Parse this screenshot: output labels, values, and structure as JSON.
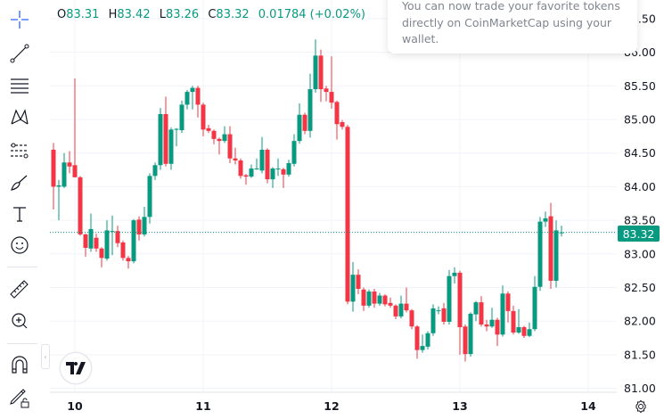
{
  "legend": {
    "open_label": "O",
    "open": "83.31",
    "high_label": "H",
    "high": "83.42",
    "low_label": "L",
    "low": "83.26",
    "close_label": "C",
    "close": "83.32",
    "change": "0.01784 (+0.02%)"
  },
  "popup": {
    "text_line1": "You can now trade your favorite tokens",
    "text_line2": "directly on CoinMarketCap using your",
    "text_line3": "wallet."
  },
  "toolbar": {
    "tools": [
      "crosshair-icon",
      "trend-line-icon",
      "fib-retracement-icon",
      "pattern-icon",
      "prediction-icon",
      "brush-icon",
      "text-icon",
      "emoji-icon",
      "ruler-icon",
      "zoom-in-icon",
      "magnet-icon",
      "lock-drawings-icon"
    ]
  },
  "current_price": "83.32",
  "colors": {
    "up": "#089981",
    "down": "#f23645",
    "grid": "#f0f3fa",
    "crosshair": "#2962ff"
  },
  "chart_data": {
    "type": "candlestick",
    "y_ticks": [
      "81.00",
      "81.50",
      "82.00",
      "82.50",
      "83.00",
      "83.50",
      "84.00",
      "84.50",
      "85.00",
      "85.50",
      "86.00",
      "86.50"
    ],
    "ylim": [
      81.0,
      86.5
    ],
    "x_ticks": [
      "10",
      "11",
      "12",
      "13",
      "14"
    ],
    "grid": true,
    "last_price": 83.32,
    "candles_ohlc": [
      [
        84.55,
        84.65,
        83.66,
        84.0
      ],
      [
        84.0,
        84.1,
        83.5,
        84.02
      ],
      [
        84.0,
        84.5,
        83.98,
        84.36
      ],
      [
        84.36,
        84.53,
        84.2,
        84.3
      ],
      [
        84.32,
        85.61,
        84.14,
        84.14
      ],
      [
        84.14,
        84.16,
        83.27,
        83.29
      ],
      [
        83.29,
        83.3,
        82.96,
        83.09
      ],
      [
        83.08,
        83.6,
        83.03,
        83.37
      ],
      [
        83.24,
        83.3,
        83.03,
        83.08
      ],
      [
        83.08,
        83.1,
        82.8,
        82.94
      ],
      [
        82.93,
        83.5,
        82.9,
        83.35
      ],
      [
        83.33,
        83.57,
        82.98,
        83.34
      ],
      [
        83.34,
        83.42,
        83.1,
        83.16
      ],
      [
        83.17,
        83.2,
        82.9,
        82.94
      ],
      [
        82.94,
        82.97,
        82.78,
        82.89
      ],
      [
        82.89,
        83.52,
        82.86,
        83.5
      ],
      [
        83.51,
        83.56,
        83.2,
        83.29
      ],
      [
        83.29,
        83.7,
        83.26,
        83.55
      ],
      [
        83.55,
        84.2,
        83.45,
        84.16
      ],
      [
        84.16,
        84.36,
        84.1,
        84.32
      ],
      [
        84.32,
        85.17,
        84.25,
        85.08
      ],
      [
        85.08,
        85.34,
        84.3,
        84.34
      ],
      [
        84.34,
        84.88,
        84.25,
        84.85
      ],
      [
        84.85,
        84.87,
        84.6,
        84.86
      ],
      [
        84.84,
        85.28,
        84.8,
        85.22
      ],
      [
        85.22,
        85.44,
        85.15,
        85.41
      ],
      [
        85.41,
        85.5,
        85.15,
        85.47
      ],
      [
        85.47,
        85.5,
        85.03,
        85.22
      ],
      [
        85.22,
        85.25,
        84.75,
        84.85
      ],
      [
        84.87,
        84.92,
        84.8,
        84.83
      ],
      [
        84.83,
        84.85,
        84.63,
        84.71
      ],
      [
        84.71,
        84.73,
        84.48,
        84.68
      ],
      [
        84.68,
        84.9,
        84.65,
        84.78
      ],
      [
        84.78,
        84.9,
        84.35,
        84.42
      ],
      [
        84.42,
        84.58,
        84.33,
        84.39
      ],
      [
        84.39,
        84.42,
        84.12,
        84.16
      ],
      [
        84.17,
        84.19,
        84.03,
        84.15
      ],
      [
        84.15,
        84.33,
        84.13,
        84.27
      ],
      [
        84.27,
        84.42,
        84.25,
        84.27
      ],
      [
        84.24,
        84.74,
        84.2,
        84.55
      ],
      [
        84.55,
        84.57,
        84.05,
        84.11
      ],
      [
        84.11,
        84.29,
        83.98,
        84.27
      ],
      [
        84.27,
        84.42,
        84.16,
        84.27
      ],
      [
        84.26,
        84.28,
        83.98,
        84.18
      ],
      [
        84.18,
        84.4,
        84.15,
        84.35
      ],
      [
        84.34,
        84.78,
        84.3,
        84.68
      ],
      [
        84.68,
        85.24,
        84.64,
        85.07
      ],
      [
        85.07,
        85.1,
        84.78,
        84.83
      ],
      [
        84.83,
        85.68,
        84.73,
        85.45
      ],
      [
        85.45,
        86.19,
        85.4,
        85.95
      ],
      [
        85.95,
        86.04,
        85.26,
        85.45
      ],
      [
        85.46,
        85.5,
        85.27,
        85.41
      ],
      [
        85.41,
        85.94,
        85.16,
        85.25
      ],
      [
        85.26,
        85.28,
        84.7,
        84.93
      ],
      [
        84.96,
        84.99,
        84.85,
        84.89
      ],
      [
        84.89,
        84.92,
        82.25,
        82.29
      ],
      [
        82.29,
        82.88,
        82.14,
        82.69
      ],
      [
        82.69,
        82.77,
        82.4,
        82.48
      ],
      [
        82.47,
        82.5,
        82.15,
        82.23
      ],
      [
        82.23,
        82.47,
        82.2,
        82.44
      ],
      [
        82.44,
        82.48,
        82.2,
        82.26
      ],
      [
        82.26,
        82.42,
        82.23,
        82.38
      ],
      [
        82.38,
        82.4,
        82.22,
        82.25
      ],
      [
        82.27,
        82.35,
        82.2,
        82.23
      ],
      [
        82.23,
        82.25,
        82.03,
        82.07
      ],
      [
        82.07,
        82.38,
        82.04,
        82.26
      ],
      [
        82.26,
        82.5,
        82.13,
        82.16
      ],
      [
        82.16,
        82.18,
        81.88,
        81.92
      ],
      [
        81.92,
        81.94,
        81.44,
        81.57
      ],
      [
        81.57,
        81.8,
        81.53,
        81.63
      ],
      [
        81.62,
        81.85,
        81.58,
        81.82
      ],
      [
        81.82,
        82.25,
        81.78,
        82.19
      ],
      [
        82.16,
        82.22,
        82.1,
        82.16
      ],
      [
        82.19,
        82.27,
        81.95,
        81.99
      ],
      [
        81.99,
        82.76,
        81.95,
        82.67
      ],
      [
        82.67,
        82.8,
        82.56,
        82.72
      ],
      [
        82.72,
        82.75,
        81.5,
        81.91
      ],
      [
        81.92,
        81.95,
        81.4,
        81.51
      ],
      [
        81.51,
        82.13,
        81.47,
        82.11
      ],
      [
        82.1,
        82.3,
        82.0,
        82.28
      ],
      [
        82.28,
        82.37,
        81.92,
        81.95
      ],
      [
        81.95,
        82.02,
        81.85,
        81.92
      ],
      [
        81.92,
        82.2,
        81.9,
        82.02
      ],
      [
        82.02,
        82.05,
        81.63,
        81.8
      ],
      [
        81.8,
        82.53,
        81.77,
        82.41
      ],
      [
        82.41,
        82.44,
        81.98,
        82.15
      ],
      [
        82.15,
        82.23,
        81.8,
        81.83
      ],
      [
        81.83,
        82.18,
        81.81,
        81.91
      ],
      [
        81.91,
        81.93,
        81.75,
        81.78
      ],
      [
        81.78,
        81.98,
        81.76,
        81.88
      ],
      [
        81.88,
        82.67,
        81.85,
        82.51
      ],
      [
        82.51,
        83.55,
        82.45,
        83.48
      ],
      [
        83.48,
        83.63,
        83.4,
        83.53
      ],
      [
        83.56,
        83.76,
        82.48,
        82.6
      ],
      [
        82.6,
        83.5,
        82.5,
        83.35
      ],
      [
        83.31,
        83.42,
        83.26,
        83.32
      ]
    ]
  }
}
